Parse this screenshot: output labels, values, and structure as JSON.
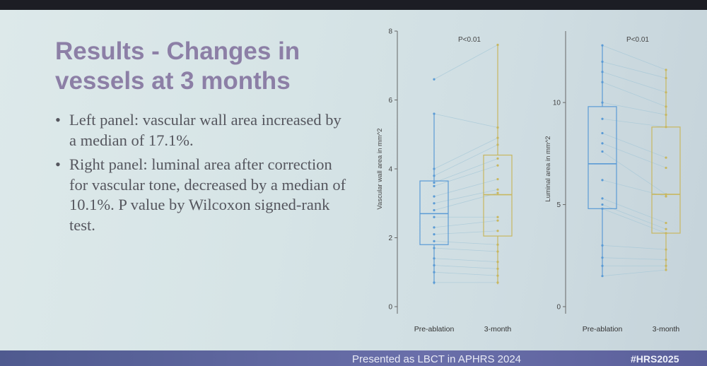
{
  "slide": {
    "title_line1": "Results - Changes in",
    "title_line2": "vessels at 3 months",
    "bullet_char": "•",
    "bullets": [
      "Left panel: vascular wall area increased by a median of 17.1%.",
      "Right panel: luminal area after correction for vascular tone, decreased by a median of 10.1%. P value by Wilcoxon signed-rank test."
    ]
  },
  "footer": {
    "presented": "Presented as LBCT in APHRS 2024",
    "hashtag": "#HRS2025"
  },
  "colors": {
    "pre": "#5b9bd5",
    "post": "#c8b760",
    "pair_line": "#a9c9d8",
    "axis": "#666666"
  },
  "chart_data": [
    {
      "type": "box",
      "annotation": "P<0.01",
      "ylabel": "Vascular wall area in mm^2",
      "categories": [
        "Pre-ablation",
        "3-month"
      ],
      "ylim": [
        0,
        8
      ],
      "yticks": [
        0,
        2,
        4,
        6,
        8
      ],
      "boxes": [
        {
          "name": "Pre-ablation",
          "min": 0.65,
          "q1": 1.8,
          "median": 2.7,
          "q3": 3.65,
          "max": 5.6
        },
        {
          "name": "3-month",
          "min": 0.65,
          "q1": 2.05,
          "median": 3.25,
          "q3": 4.4,
          "max": 7.6
        }
      ],
      "pre_points": [
        6.6,
        5.6,
        4.0,
        3.8,
        3.6,
        3.5,
        3.2,
        3.0,
        2.8,
        2.6,
        2.3,
        2.1,
        1.9,
        1.7,
        1.4,
        1.2,
        1.0,
        0.7
      ],
      "post_points": [
        7.6,
        5.2,
        4.9,
        4.7,
        4.3,
        4.1,
        3.7,
        3.4,
        3.3,
        2.6,
        2.5,
        2.2,
        1.8,
        1.6,
        1.3,
        1.1,
        0.9,
        0.7
      ]
    },
    {
      "type": "box",
      "annotation": "P<0.01",
      "ylabel": "Luminal area in mm^2",
      "categories": [
        "Pre-ablation",
        "3-month"
      ],
      "ylim": [
        0,
        13.5
      ],
      "yticks": [
        0,
        5,
        10
      ],
      "boxes": [
        {
          "name": "Pre-ablation",
          "min": 1.5,
          "q1": 4.8,
          "median": 7.0,
          "q3": 9.8,
          "max": 12.8
        },
        {
          "name": "3-month",
          "min": 1.8,
          "q1": 3.6,
          "median": 5.5,
          "q3": 8.8,
          "max": 11.6
        }
      ],
      "pre_points": [
        12.8,
        12.0,
        11.5,
        11.0,
        10.0,
        9.2,
        8.5,
        8.0,
        7.6,
        6.2,
        5.3,
        5.0,
        4.8,
        3.0,
        2.4,
        2.0,
        1.5
      ],
      "post_points": [
        11.6,
        11.2,
        10.5,
        9.8,
        9.4,
        8.8,
        7.3,
        6.8,
        5.5,
        5.4,
        4.1,
        3.8,
        3.6,
        2.8,
        2.3,
        2.0,
        1.8
      ]
    }
  ]
}
